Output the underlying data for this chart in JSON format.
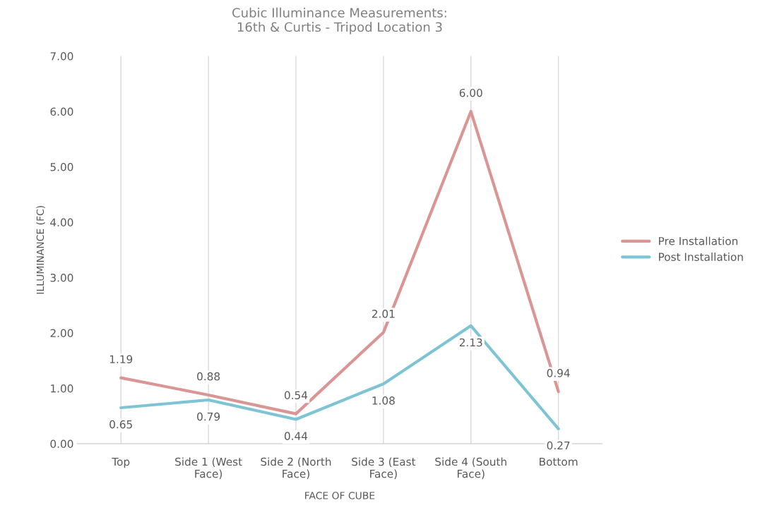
{
  "chart_data": {
    "type": "line",
    "title": "Cubic Illuminance Measurements:\n16th & Curtis - Tripod Location 3",
    "xlabel": "FACE OF CUBE",
    "ylabel": "ILLUMINANCE (FC)",
    "categories": [
      "Top",
      "Side 1 (West\nFace)",
      "Side 2 (North\nFace)",
      "Side 3 (East\nFace)",
      "Side 4 (South\nFace)",
      "Bottom"
    ],
    "series": [
      {
        "name": "Pre Installation",
        "color": "#d99694",
        "values": [
          1.19,
          0.88,
          0.54,
          2.01,
          6.0,
          0.94
        ],
        "value_labels": [
          "1.19",
          "0.88",
          "0.54",
          "2.01",
          "6.00",
          "0.94"
        ]
      },
      {
        "name": "Post Installation",
        "color": "#7fc4d4",
        "values": [
          0.65,
          0.79,
          0.44,
          1.08,
          2.13,
          0.27
        ],
        "value_labels": [
          "0.65",
          "0.79",
          "0.44",
          "1.08",
          "2.13",
          "0.27"
        ]
      }
    ],
    "ylim": [
      0,
      7
    ],
    "yticks": [
      {
        "value": 0,
        "label": "0.00"
      },
      {
        "value": 1,
        "label": "1.00"
      },
      {
        "value": 2,
        "label": "2.00"
      },
      {
        "value": 3,
        "label": "3.00"
      },
      {
        "value": 4,
        "label": "4.00"
      },
      {
        "value": 5,
        "label": "5.00"
      },
      {
        "value": 6,
        "label": "6.00"
      },
      {
        "value": 7,
        "label": "7.00"
      }
    ],
    "grid": "x",
    "legend": "right",
    "marker": "none",
    "line_style": "solid"
  }
}
